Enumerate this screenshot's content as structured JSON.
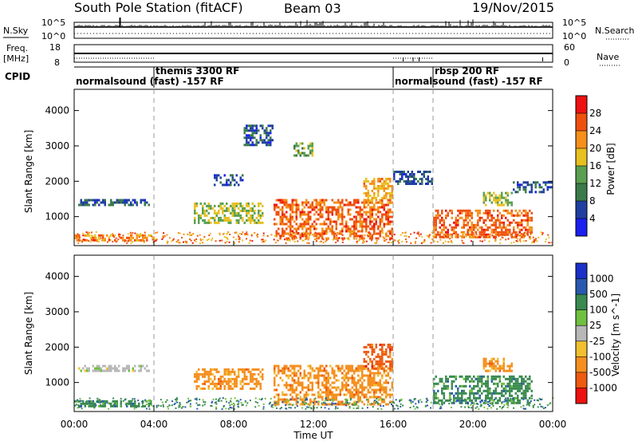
{
  "header": {
    "station": "South Pole Station (fitACF)",
    "beam": "Beam 03",
    "date": "19/Nov/2015"
  },
  "panels": {
    "nsky_label": "N.Sky",
    "nsky_ticks": [
      "10^5",
      "10^0"
    ],
    "nsearch_label": "N.Search",
    "nsearch_ticks": [
      "10^5",
      "10^0"
    ],
    "freq_label_1": "Freq.",
    "freq_label_2": "[MHz]",
    "freq_ticks": [
      "18",
      "8"
    ],
    "nave_label": "Nave",
    "nave_ticks": [
      "60",
      "0"
    ],
    "cpid_label": "CPID",
    "cpid_segments": [
      {
        "text": "normalsound (fast) -157 RF",
        "start": 0.0,
        "end": 4.0,
        "row": "low"
      },
      {
        "text": "themis 3300 RF",
        "start": 4.0,
        "end": 16.0,
        "row": "high"
      },
      {
        "text": "normalsound (fast) -157 RF",
        "start": 16.0,
        "end": 18.0,
        "row": "low"
      },
      {
        "text": "rbsp 200 RF",
        "start": 18.0,
        "end": 24.0,
        "row": "high"
      }
    ]
  },
  "colorbars": {
    "power": {
      "label": "Power [dB]",
      "ticks": [
        "28",
        "24",
        "20",
        "16",
        "12",
        "8",
        "4"
      ],
      "colors": [
        "#ee1111",
        "#f0500f",
        "#f5901a",
        "#e8c020",
        "#5aa050",
        "#3b7a4a",
        "#2040a0",
        "#1a20ee"
      ]
    },
    "velocity": {
      "label": "Velocity [m s^-1]",
      "ticks": [
        "1000",
        "500",
        "100",
        "25",
        "-25",
        "-100",
        "-500",
        "-1000"
      ],
      "colors": [
        "#1a30c8",
        "#2a5ab0",
        "#3a8a50",
        "#70c040",
        "#b8b8b8",
        "#f0c030",
        "#f59020",
        "#ee5a10",
        "#ee1111"
      ]
    }
  },
  "chart_data": [
    {
      "type": "heatmap",
      "name": "power",
      "xlabel": "Time UT",
      "ylabel": "Slant Range [km]",
      "xlim": [
        0,
        24
      ],
      "ylim": [
        180,
        4600
      ],
      "x_ticks": [
        "00:00",
        "04:00",
        "08:00",
        "12:00",
        "16:00",
        "20:00",
        "00:00"
      ],
      "y_ticks": [
        1000,
        2000,
        3000,
        4000
      ],
      "regions": [
        {
          "x0": 0.0,
          "x1": 4.0,
          "y0": 300,
          "y1": 500,
          "value": 20
        },
        {
          "x0": 0.2,
          "x1": 3.8,
          "y0": 1350,
          "y1": 1500,
          "value": 6
        },
        {
          "x0": 6.0,
          "x1": 9.5,
          "y0": 800,
          "y1": 1400,
          "value": 14
        },
        {
          "x0": 7.0,
          "x1": 8.5,
          "y0": 1900,
          "y1": 2200,
          "value": 6
        },
        {
          "x0": 8.5,
          "x1": 10.0,
          "y0": 3000,
          "y1": 3600,
          "value": 6
        },
        {
          "x0": 11.0,
          "x1": 12.0,
          "y0": 2700,
          "y1": 3100,
          "value": 12
        },
        {
          "x0": 10.0,
          "x1": 16.0,
          "y0": 400,
          "y1": 1500,
          "value": 22
        },
        {
          "x0": 14.5,
          "x1": 16.0,
          "y0": 1400,
          "y1": 2100,
          "value": 18
        },
        {
          "x0": 16.0,
          "x1": 18.0,
          "y0": 1900,
          "y1": 2300,
          "value": 6
        },
        {
          "x0": 18.0,
          "x1": 23.0,
          "y0": 400,
          "y1": 1200,
          "value": 22
        },
        {
          "x0": 20.5,
          "x1": 22.0,
          "y0": 1300,
          "y1": 1700,
          "value": 14
        },
        {
          "x0": 22.0,
          "x1": 24.0,
          "y0": 1700,
          "y1": 2000,
          "value": 6
        }
      ]
    },
    {
      "type": "heatmap",
      "name": "velocity",
      "xlabel": "Time UT",
      "ylabel": "Slant Range [km]",
      "xlim": [
        0,
        24
      ],
      "ylim": [
        180,
        4600
      ],
      "x_ticks": [
        "00:00",
        "04:00",
        "08:00",
        "12:00",
        "16:00",
        "20:00",
        "00:00"
      ],
      "y_ticks": [
        1000,
        2000,
        3000,
        4000
      ],
      "regions": [
        {
          "x0": 0.0,
          "x1": 4.0,
          "y0": 300,
          "y1": 500,
          "value": 100
        },
        {
          "x0": 0.2,
          "x1": 3.8,
          "y0": 1350,
          "y1": 1500,
          "value": 0
        },
        {
          "x0": 6.0,
          "x1": 9.5,
          "y0": 800,
          "y1": 1400,
          "value": -300
        },
        {
          "x0": 10.0,
          "x1": 16.0,
          "y0": 400,
          "y1": 1500,
          "value": -400
        },
        {
          "x0": 14.5,
          "x1": 16.0,
          "y0": 1400,
          "y1": 2100,
          "value": -900
        },
        {
          "x0": 18.0,
          "x1": 23.0,
          "y0": 400,
          "y1": 1200,
          "value": 150
        },
        {
          "x0": 20.5,
          "x1": 22.0,
          "y0": 1300,
          "y1": 1700,
          "value": -300
        }
      ]
    }
  ]
}
